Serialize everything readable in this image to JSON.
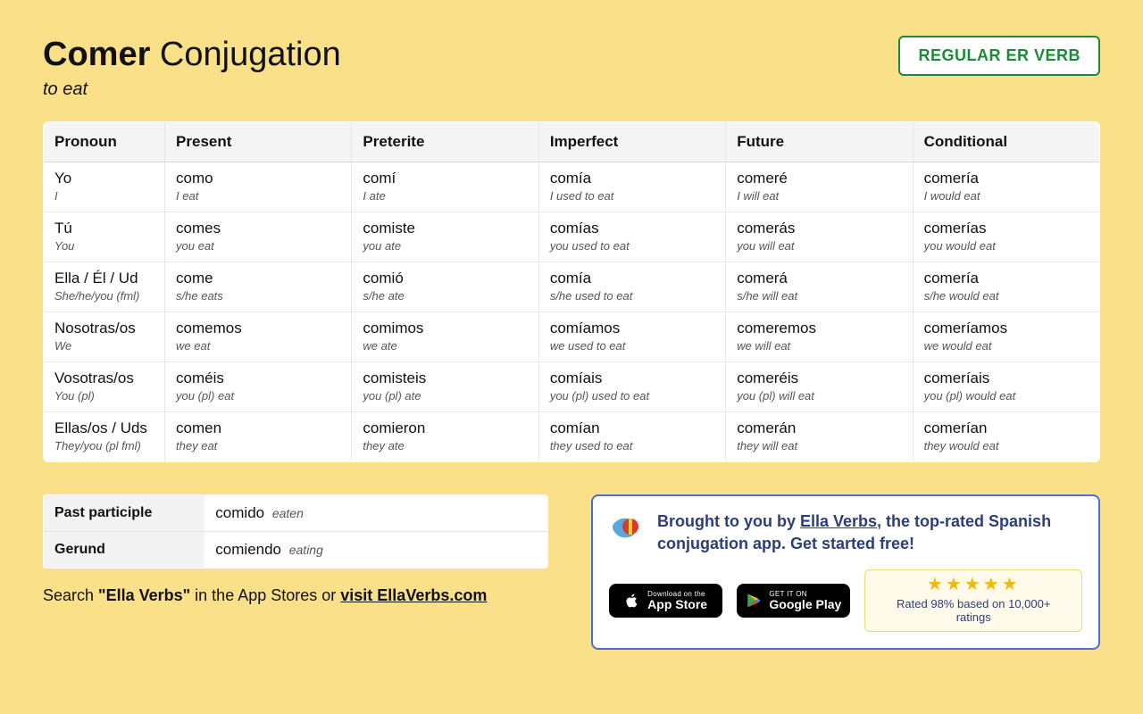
{
  "colors": {
    "page_bg": "#fbe08a",
    "badge_border": "#1d8a3a",
    "promo_border": "#4a6fd4",
    "promo_text": "#2c3e7a",
    "star": "#f2b90c",
    "rating_bg": "#fffaea",
    "rating_border": "#f0d97a",
    "cell_border": "#e8e8e8",
    "header_bg": "#f5f5f5"
  },
  "header": {
    "verb": "Comer",
    "title_suffix": " Conjugation",
    "meaning": "to eat",
    "badge": "REGULAR ER VERB"
  },
  "table": {
    "columns": [
      "Pronoun",
      "Present",
      "Preterite",
      "Imperfect",
      "Future",
      "Conditional"
    ],
    "rows": [
      {
        "pronoun": {
          "es": "Yo",
          "en": "I"
        },
        "cells": [
          {
            "es": "como",
            "en": "I eat"
          },
          {
            "es": "comí",
            "en": "I ate"
          },
          {
            "es": "comía",
            "en": "I used to eat"
          },
          {
            "es": "comeré",
            "en": "I will eat"
          },
          {
            "es": "comería",
            "en": "I would eat"
          }
        ]
      },
      {
        "pronoun": {
          "es": "Tú",
          "en": "You"
        },
        "cells": [
          {
            "es": "comes",
            "en": "you eat"
          },
          {
            "es": "comiste",
            "en": "you ate"
          },
          {
            "es": "comías",
            "en": "you used to eat"
          },
          {
            "es": "comerás",
            "en": "you will eat"
          },
          {
            "es": "comerías",
            "en": "you would eat"
          }
        ]
      },
      {
        "pronoun": {
          "es": "Ella / Él / Ud",
          "en": "She/he/you (fml)"
        },
        "cells": [
          {
            "es": "come",
            "en": "s/he eats"
          },
          {
            "es": "comió",
            "en": "s/he ate"
          },
          {
            "es": "comía",
            "en": "s/he used to eat"
          },
          {
            "es": "comerá",
            "en": "s/he will eat"
          },
          {
            "es": "comería",
            "en": "s/he would eat"
          }
        ]
      },
      {
        "pronoun": {
          "es": "Nosotras/os",
          "en": "We"
        },
        "cells": [
          {
            "es": "comemos",
            "en": "we eat"
          },
          {
            "es": "comimos",
            "en": "we ate"
          },
          {
            "es": "comíamos",
            "en": "we used to eat"
          },
          {
            "es": "comeremos",
            "en": "we will eat"
          },
          {
            "es": "comeríamos",
            "en": "we would eat"
          }
        ]
      },
      {
        "pronoun": {
          "es": "Vosotras/os",
          "en": "You (pl)"
        },
        "cells": [
          {
            "es": "coméis",
            "en": "you (pl) eat"
          },
          {
            "es": "comisteis",
            "en": "you (pl) ate"
          },
          {
            "es": "comíais",
            "en": "you (pl) used to eat"
          },
          {
            "es": "comeréis",
            "en": "you (pl) will eat"
          },
          {
            "es": "comeríais",
            "en": "you (pl) would eat"
          }
        ]
      },
      {
        "pronoun": {
          "es": "Ellas/os / Uds",
          "en": "They/you (pl fml)"
        },
        "cells": [
          {
            "es": "comen",
            "en": "they eat"
          },
          {
            "es": "comieron",
            "en": "they ate"
          },
          {
            "es": "comían",
            "en": "they used to eat"
          },
          {
            "es": "comerán",
            "en": "they will eat"
          },
          {
            "es": "comerían",
            "en": "they would eat"
          }
        ]
      }
    ]
  },
  "forms": [
    {
      "label": "Past participle",
      "es": "comido",
      "en": "eaten"
    },
    {
      "label": "Gerund",
      "es": "comiendo",
      "en": "eating"
    }
  ],
  "search_note": {
    "prefix": "Search ",
    "bold": "\"Ella Verbs\"",
    "middle": " in the App Stores or ",
    "link": "visit EllaVerbs.com"
  },
  "promo": {
    "line1_prefix": "Brought to you by ",
    "link": "Ella Verbs",
    "line1_suffix": ", the top-rated Spanish conjugation app. Get started free!",
    "appstore": {
      "small": "Download on the",
      "big": "App Store"
    },
    "playstore": {
      "small": "GET IT ON",
      "big": "Google Play"
    },
    "stars": "★★★★★",
    "rating_text": "Rated 98% based on 10,000+ ratings"
  }
}
